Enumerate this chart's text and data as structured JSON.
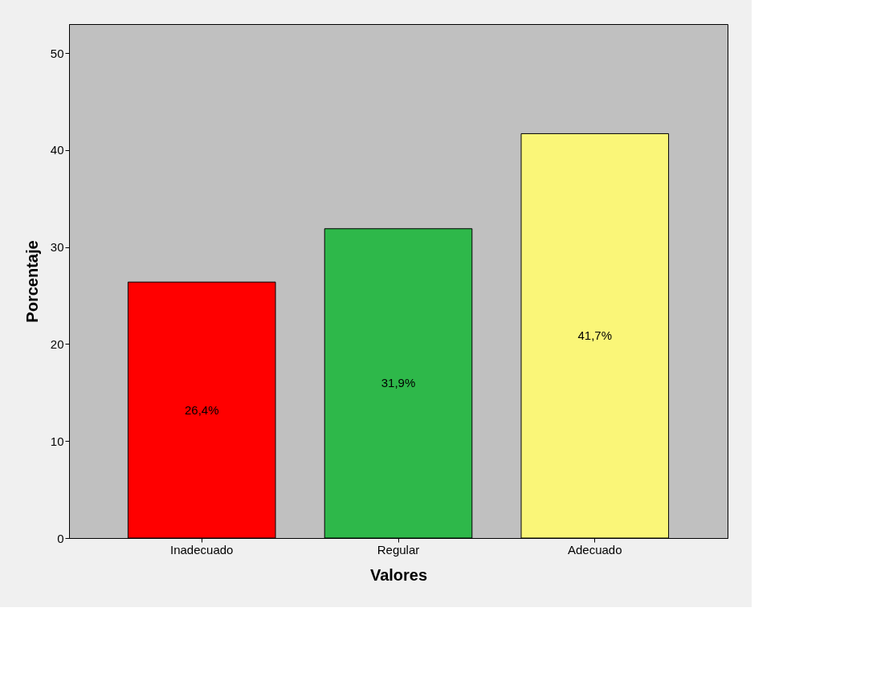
{
  "chart_data": {
    "type": "bar",
    "xlabel": "Valores",
    "ylabel": "Porcentaje",
    "categories": [
      "Inadecuado",
      "Regular",
      "Adecuado"
    ],
    "values": [
      26.4,
      31.9,
      41.7
    ],
    "colors": [
      "#ff0000",
      "#2eb84a",
      "#faf678"
    ],
    "value_labels": [
      "26,4%",
      "31,9%",
      "41,7%"
    ],
    "ylim": [
      0,
      53
    ],
    "yticks": [
      0,
      10,
      20,
      30,
      40,
      50
    ],
    "grid": false
  }
}
